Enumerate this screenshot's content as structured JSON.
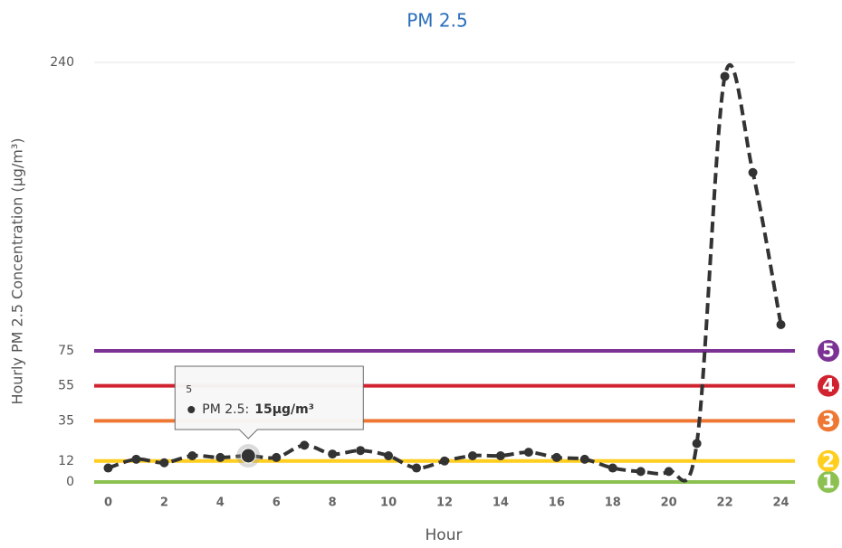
{
  "chart_data": {
    "type": "line",
    "title": "PM 2.5",
    "y_label": "Hourly PM 2.5 Concentration (µg/m³)",
    "x_label": "Hour",
    "x": [
      0,
      1,
      2,
      3,
      4,
      5,
      6,
      7,
      8,
      9,
      10,
      11,
      12,
      13,
      14,
      15,
      16,
      17,
      18,
      19,
      20,
      21,
      22,
      23,
      24
    ],
    "series": [
      {
        "name": "PM 2.5",
        "color": "#333333",
        "values": [
          8,
          13,
          11,
          15,
          14,
          15,
          14,
          21,
          16,
          18,
          15,
          8,
          12,
          15,
          15,
          17,
          14,
          13,
          8,
          6,
          6,
          22,
          232,
          177,
          90
        ]
      }
    ],
    "xlim": [
      -0.5,
      24.5
    ],
    "xticks": [
      0,
      2,
      4,
      6,
      8,
      10,
      12,
      14,
      16,
      18,
      20,
      22,
      24
    ],
    "ylim": [
      0,
      240
    ],
    "yticks": [
      0,
      12,
      35,
      55,
      75,
      240
    ],
    "grid": true,
    "thresholds": [
      {
        "value": 0,
        "label": "1",
        "color": "#8cc152"
      },
      {
        "value": 12,
        "label": "2",
        "color": "#ffce1f"
      },
      {
        "value": 35,
        "label": "3",
        "color": "#ee7733"
      },
      {
        "value": 55,
        "label": "4",
        "color": "#d0232f"
      },
      {
        "value": 75,
        "label": "5",
        "color": "#7b3294"
      }
    ],
    "tooltip": {
      "header": "5",
      "text": "PM 2.5:",
      "value_label": "15µg/m³"
    }
  }
}
